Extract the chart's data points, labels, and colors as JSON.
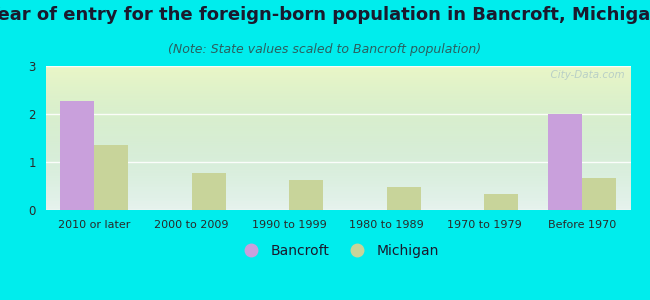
{
  "title": "Year of entry for the foreign-born population in Bancroft, Michigan",
  "subtitle": "(Note: State values scaled to Bancroft population)",
  "categories": [
    "2010 or later",
    "2000 to 2009",
    "1990 to 1999",
    "1980 to 1989",
    "1970 to 1979",
    "Before 1970"
  ],
  "bancroft_values": [
    2.27,
    0,
    0,
    0,
    0,
    2.0
  ],
  "michigan_values": [
    1.35,
    0.78,
    0.63,
    0.47,
    0.33,
    0.67
  ],
  "bancroft_color": "#c9a0dc",
  "michigan_color": "#c8d49a",
  "bg_color": "#00eded",
  "ylim": [
    0,
    3
  ],
  "yticks": [
    0,
    1,
    2,
    3
  ],
  "title_fontsize": 13,
  "subtitle_fontsize": 9,
  "bar_width": 0.35,
  "watermark": "  City-Data.com",
  "title_color": "#1a1a2e",
  "subtitle_color": "#2a6060",
  "tick_color": "#2a2a2a",
  "legend_fontsize": 10
}
